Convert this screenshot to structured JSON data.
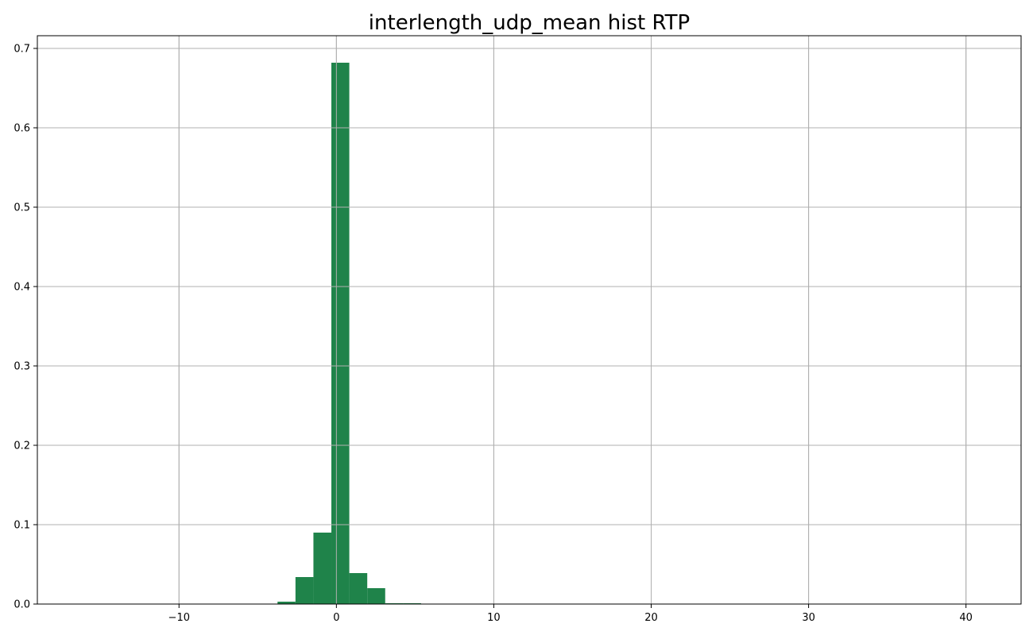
{
  "chart_data": {
    "type": "bar",
    "title": "interlength_udp_mean hist RTP",
    "xlabel": "",
    "ylabel": "",
    "xlim": [
      -19,
      43.5
    ],
    "ylim": [
      0,
      0.716
    ],
    "x_ticks": [
      -10,
      0,
      10,
      20,
      30,
      40
    ],
    "x_tick_labels": [
      "−10",
      "0",
      "10",
      "20",
      "30",
      "40"
    ],
    "y_ticks": [
      0.0,
      0.1,
      0.2,
      0.3,
      0.4,
      0.5,
      0.6,
      0.7
    ],
    "y_tick_labels": [
      "0.0",
      "0.1",
      "0.2",
      "0.3",
      "0.4",
      "0.5",
      "0.6",
      "0.7"
    ],
    "grid": true,
    "bar_color": "#1f834a",
    "bins": [
      {
        "start": -3.74,
        "end": -2.6,
        "value": 0.003
      },
      {
        "start": -2.6,
        "end": -1.46,
        "value": 0.034
      },
      {
        "start": -1.46,
        "end": -0.32,
        "value": 0.09
      },
      {
        "start": -0.32,
        "end": 0.82,
        "value": 0.682
      },
      {
        "start": 0.82,
        "end": 1.96,
        "value": 0.039
      },
      {
        "start": 1.96,
        "end": 3.1,
        "value": 0.02
      },
      {
        "start": 3.1,
        "end": 4.24,
        "value": 0.001
      },
      {
        "start": 4.24,
        "end": 5.38,
        "value": 0.001
      }
    ]
  }
}
